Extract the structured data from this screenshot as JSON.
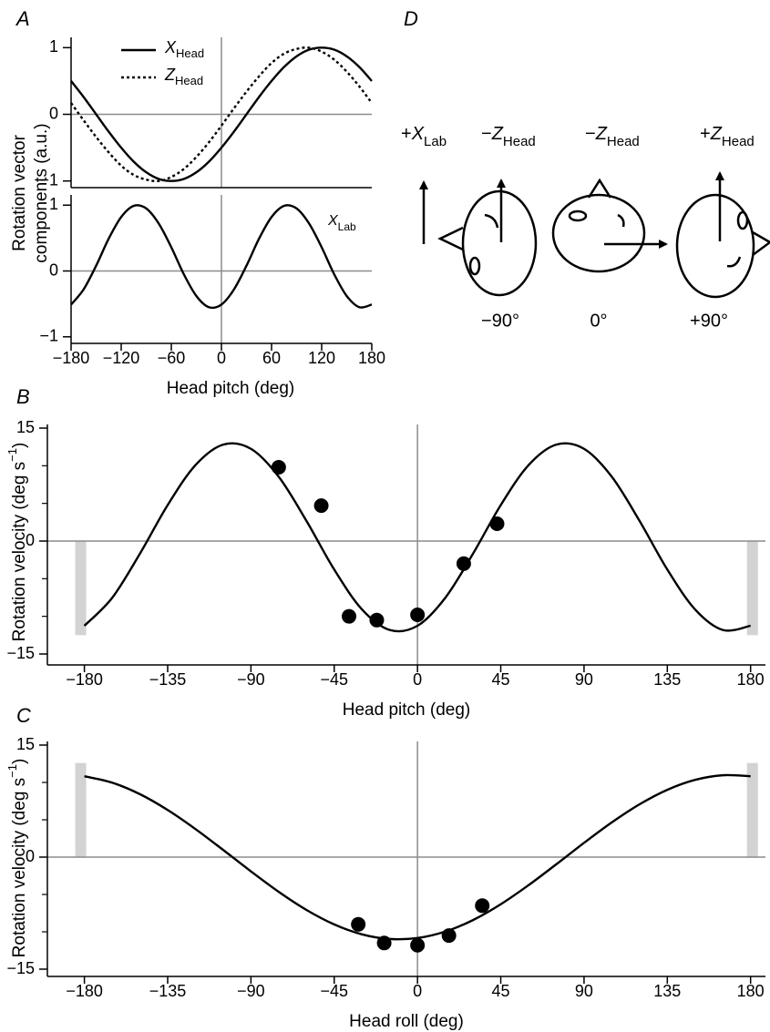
{
  "chart_data": [
    {
      "panel": "A",
      "type": "line",
      "x": [
        -180,
        -165,
        -150,
        -135,
        -120,
        -105,
        -90,
        -75,
        -60,
        -45,
        -30,
        -15,
        0,
        15,
        30,
        45,
        60,
        75,
        90,
        105,
        120,
        135,
        150,
        165,
        180
      ],
      "xlim": [
        -180,
        180
      ],
      "ylim": [
        -1.1,
        1.1
      ],
      "yticks": [
        {
          "value": -1,
          "label": "−1"
        },
        0,
        1
      ],
      "zero_lines": true,
      "legend": "upper left",
      "y_label": [
        "Rotation vector",
        "components (a.u.)"
      ],
      "series": [
        {
          "name": "X",
          "name_sub": "Head",
          "color": "#000000",
          "dash": "solid",
          "values": [
            0.5,
            0.26,
            0,
            -0.26,
            -0.5,
            -0.71,
            -0.87,
            -0.97,
            -1,
            -0.97,
            -0.87,
            -0.71,
            -0.5,
            -0.26,
            0,
            0.26,
            0.5,
            0.71,
            0.87,
            0.97,
            1,
            0.97,
            0.87,
            0.71,
            0.5
          ]
        },
        {
          "name": "Z",
          "name_sub": "Head",
          "color": "#000000",
          "dash": "dotted",
          "values": [
            0.17,
            -0.09,
            -0.34,
            -0.57,
            -0.77,
            -0.91,
            -0.98,
            -1.0,
            -0.94,
            -0.82,
            -0.64,
            -0.42,
            -0.17,
            0.09,
            0.34,
            0.57,
            0.77,
            0.91,
            0.98,
            1.0,
            0.94,
            0.82,
            0.64,
            0.42,
            0.17
          ]
        }
      ]
    },
    {
      "type": "line",
      "x": [
        -180,
        -165,
        -150,
        -135,
        -120,
        -105,
        -90,
        -75,
        -60,
        -45,
        -30,
        -15,
        0,
        15,
        30,
        45,
        60,
        75,
        90,
        105,
        120,
        135,
        150,
        165,
        180
      ],
      "xlim": [
        -180,
        180
      ],
      "ylim": [
        -1.1,
        1.1
      ],
      "yticks": [
        {
          "value": -1,
          "label": "−1"
        },
        0,
        1
      ],
      "xticks": [
        {
          "value": -180,
          "label": "−180"
        },
        {
          "value": -120,
          "label": "−120"
        },
        {
          "value": -60,
          "label": "−60"
        },
        0,
        60,
        120,
        180
      ],
      "x_label": "Head pitch (deg)",
      "zero_lines": true,
      "legend": "inline",
      "series": [
        {
          "name": "X",
          "name_sub": "Lab",
          "color": "#000000",
          "dash": "solid",
          "values": [
            -0.51,
            -0.28,
            0.08,
            0.49,
            0.82,
            0.99,
            0.95,
            0.72,
            0.36,
            -0.05,
            -0.38,
            -0.55,
            -0.51,
            -0.28,
            0.08,
            0.49,
            0.82,
            0.99,
            0.95,
            0.72,
            0.36,
            -0.05,
            -0.38,
            -0.55,
            -0.51
          ]
        }
      ]
    },
    {
      "panel": "B",
      "type": "scatter",
      "xlim": [
        -200,
        190
      ],
      "ylim": [
        -15,
        15
      ],
      "yticks": [
        {
          "value": -15,
          "label": "−15"
        },
        0,
        15
      ],
      "yminor": [
        -10,
        -5,
        5,
        10
      ],
      "xticks": [
        {
          "value": -180,
          "label": "−180"
        },
        {
          "value": -135,
          "label": "−135"
        },
        {
          "value": -90,
          "label": "−90"
        },
        {
          "value": -45,
          "label": "−45"
        },
        0,
        45,
        90,
        135,
        180
      ],
      "x_label": "Head pitch (deg)",
      "y_label": {
        "text": "Rotation velocity (deg s",
        "sup": "−1",
        "end": ")"
      },
      "zero_lines": true,
      "shade": {
        "x": [
          -182,
          181
        ],
        "range": [
          -12.5,
          0
        ],
        "color": "#d3d3d3"
      },
      "fit": {
        "color": "#000000",
        "x": [
          -180,
          -165,
          -150,
          -135,
          -120,
          -105,
          -90,
          -75,
          -60,
          -45,
          -30,
          -15,
          0,
          15,
          30,
          45,
          60,
          75,
          90,
          105,
          120,
          135,
          150,
          165,
          180
        ],
        "values": [
          -11.25,
          -7.54,
          -1.68,
          4.78,
          10.08,
          12.81,
          12.25,
          8.54,
          2.68,
          -3.78,
          -9.08,
          -11.81,
          -11.25,
          -7.54,
          -1.68,
          4.78,
          10.08,
          12.81,
          12.25,
          8.54,
          2.68,
          -3.78,
          -9.08,
          -11.81,
          -11.25
        ]
      },
      "points": {
        "color": "#000000",
        "x": [
          -75,
          -52,
          -37,
          -22,
          0,
          25,
          43
        ],
        "values": [
          9.8,
          4.7,
          -10,
          -10.5,
          -9.8,
          -3,
          2.3
        ]
      }
    },
    {
      "panel": "C",
      "type": "scatter",
      "xlim": [
        -200,
        190
      ],
      "ylim": [
        -15,
        15
      ],
      "yticks": [
        {
          "value": -15,
          "label": "−15"
        },
        0,
        15
      ],
      "yminor": [
        -10,
        -5,
        5,
        10
      ],
      "xticks": [
        {
          "value": -180,
          "label": "−180"
        },
        {
          "value": -135,
          "label": "−135"
        },
        {
          "value": -90,
          "label": "−90"
        },
        {
          "value": -45,
          "label": "−45"
        },
        0,
        45,
        90,
        135,
        180
      ],
      "x_label": "Head roll (deg)",
      "y_label": {
        "text": "Rotation velocity (deg s",
        "sup": "−1",
        "end": ")"
      },
      "zero_lines": true,
      "shade": {
        "x": [
          -182,
          181
        ],
        "range": [
          0,
          12.6
        ],
        "color": "#d3d3d3"
      },
      "fit": {
        "color": "#000000",
        "x": [
          -180,
          -165,
          -150,
          -135,
          -120,
          -105,
          -90,
          -75,
          -60,
          -45,
          -30,
          -15,
          0,
          15,
          30,
          45,
          60,
          75,
          90,
          105,
          120,
          135,
          150,
          165,
          180
        ],
        "values": [
          10.83,
          9.97,
          8.43,
          6.31,
          3.76,
          0.96,
          -1.91,
          -4.65,
          -7.07,
          -9.01,
          -10.34,
          -10.96,
          -10.83,
          -9.97,
          -8.43,
          -6.31,
          -3.76,
          -0.96,
          1.91,
          4.65,
          7.07,
          9.01,
          10.34,
          10.96,
          10.83
        ]
      },
      "points": {
        "color": "#000000",
        "x": [
          -32,
          -18,
          0,
          17,
          35
        ],
        "values": [
          -9,
          -11.5,
          -11.8,
          -10.5,
          -6.5
        ]
      }
    }
  ],
  "diagram": {
    "panel": "D",
    "labels": [
      {
        "sign": "+",
        "letter": "X",
        "sub": "Lab"
      },
      {
        "sign": "−",
        "letter": "Z",
        "sub": "Head"
      },
      {
        "sign": "−",
        "letter": "Z",
        "sub": "Head"
      },
      {
        "sign": "+",
        "letter": "Z",
        "sub": "Head"
      }
    ],
    "angles": [
      "−90°",
      "0°",
      "+90°"
    ]
  }
}
